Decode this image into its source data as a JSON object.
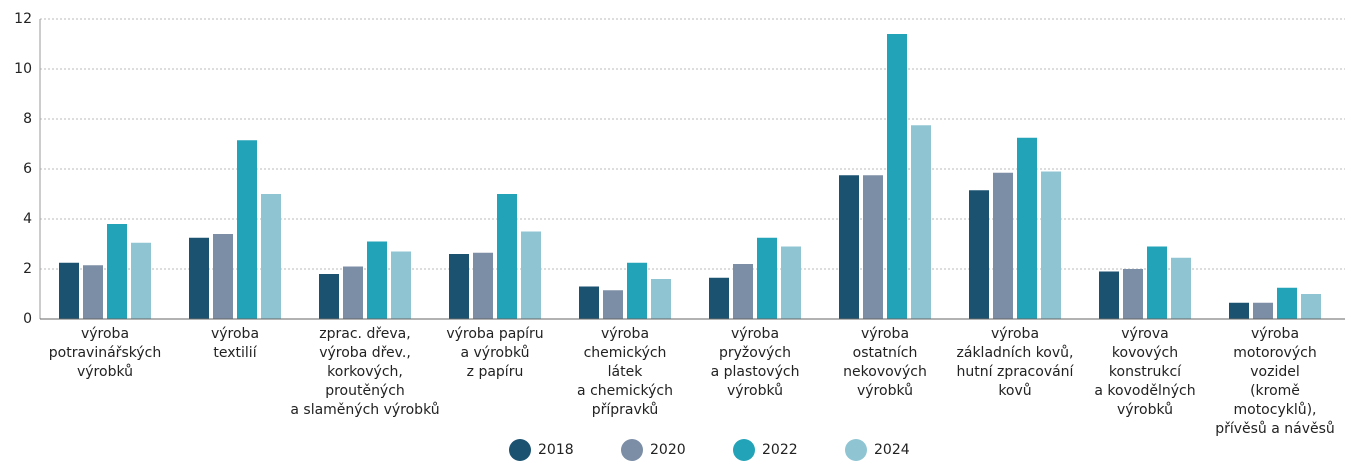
{
  "chart_data": {
    "type": "bar",
    "categories": [
      [
        "výroba",
        "potravinářských",
        "výrobků"
      ],
      [
        "výroba",
        "textilií"
      ],
      [
        "zprac. dřeva,",
        "výroba dřev.,",
        "korkových,",
        "proutěných",
        "a slaměných výrobků"
      ],
      [
        "výroba papíru",
        "a výrobků",
        "z papíru"
      ],
      [
        "výroba",
        "chemických",
        "látek",
        "a chemických",
        "přípravků"
      ],
      [
        "výroba",
        "pryžových",
        "a plastových",
        "výrobků"
      ],
      [
        "výroba",
        "ostatních",
        "nekovových",
        "výrobků"
      ],
      [
        "výroba",
        "základních kovů,",
        "hutní zpracování",
        "kovů"
      ],
      [
        "výrova",
        "kovových",
        "konstrukcí",
        "a kovodělných",
        "výrobků"
      ],
      [
        "výroba",
        "motorových",
        "vozidel",
        "(kromě",
        "motocyklů),",
        "přívěsů a návěsů"
      ]
    ],
    "series": [
      {
        "name": "2018",
        "color": "#1a5270",
        "values": [
          2.25,
          3.25,
          1.8,
          2.6,
          1.3,
          1.65,
          5.75,
          5.15,
          1.9,
          0.65
        ]
      },
      {
        "name": "2020",
        "color": "#7b8ea6",
        "values": [
          2.15,
          3.4,
          2.1,
          2.65,
          1.15,
          2.2,
          5.75,
          5.85,
          2.0,
          0.65
        ]
      },
      {
        "name": "2022",
        "color": "#22a3b8",
        "values": [
          3.8,
          7.15,
          3.1,
          5.0,
          2.25,
          3.25,
          11.4,
          7.25,
          2.9,
          1.25
        ]
      },
      {
        "name": "2024",
        "color": "#8fc5d3",
        "values": [
          3.05,
          5.0,
          2.7,
          3.5,
          1.6,
          2.9,
          7.75,
          5.9,
          2.45,
          1.0
        ]
      }
    ],
    "ylim": [
      0,
      12
    ],
    "yticks": [
      0,
      2,
      4,
      6,
      8,
      10,
      12
    ],
    "grid": true,
    "legend": "bottom"
  }
}
